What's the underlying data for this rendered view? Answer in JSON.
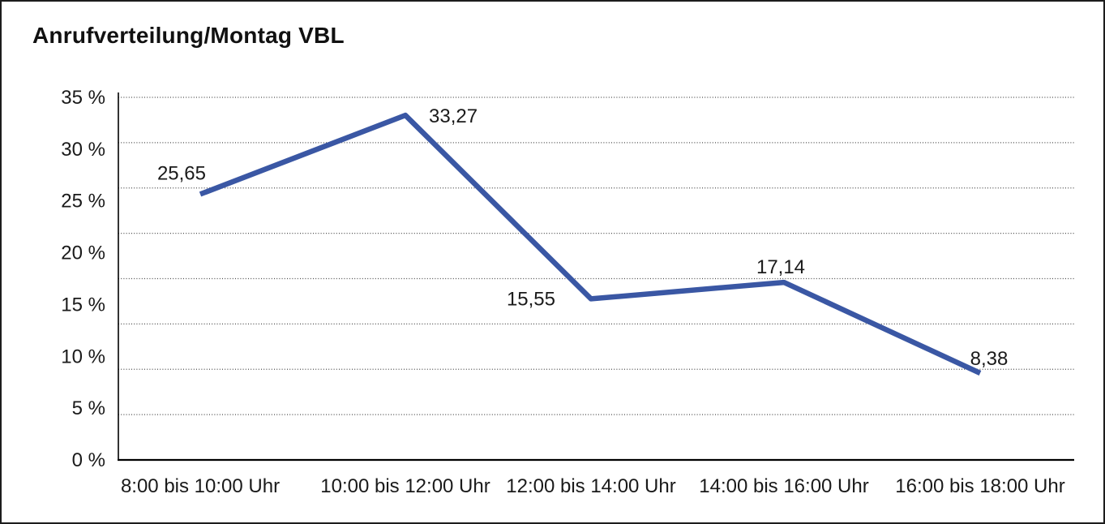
{
  "title": "Anrufverteilung/Montag VBL",
  "chart_data": {
    "type": "line",
    "title": "Anrufverteilung/Montag VBL",
    "categories": [
      "8:00 bis 10:00 Uhr",
      "10:00 bis 12:00 Uhr",
      "12:00 bis 14:00 Uhr",
      "14:00 bis 16:00 Uhr",
      "16:00 bis 18:00 Uhr"
    ],
    "series": [
      {
        "values": [
          25.65,
          33.27,
          15.55,
          17.14,
          8.38
        ],
        "value_labels": [
          "25,65",
          "33,27",
          "15,55",
          "17,14",
          "8,38"
        ]
      }
    ],
    "xlabel": "",
    "ylabel": "",
    "ylim": [
      0,
      35
    ],
    "ytick_step": 5,
    "ytick_labels": [
      "0 %",
      "5 %",
      "10 %",
      "15 %",
      "20 %",
      "25 %",
      "30 %",
      "35 %"
    ],
    "grid": {
      "horizontal": true,
      "style": "dotted",
      "intervals": 8
    },
    "legend": "none",
    "colors": {
      "line": "#3A57A4",
      "gridline": "#4d4d4d",
      "axis": "#000000",
      "text": "#1a1a1a"
    }
  }
}
